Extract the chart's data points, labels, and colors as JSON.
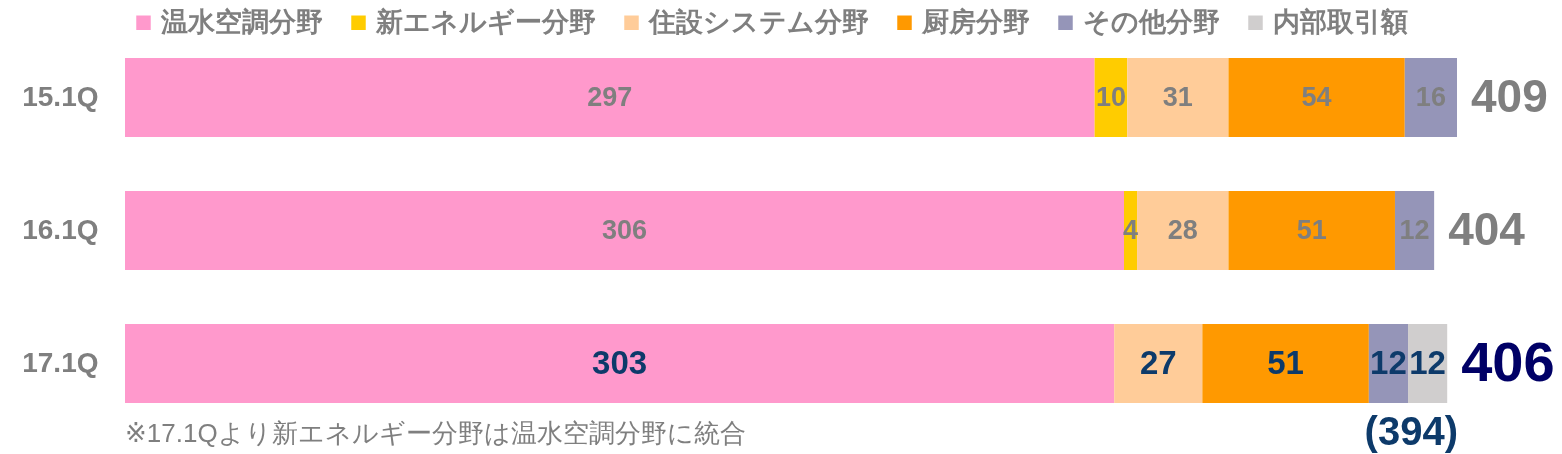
{
  "chart_data": {
    "type": "bar",
    "orientation": "horizontal",
    "stacked": true,
    "categories": [
      "15.1Q",
      "16.1Q",
      "17.1Q"
    ],
    "series": [
      {
        "name": "温水空調分野",
        "color": "#ff99cc",
        "values": [
          297,
          306,
          303
        ]
      },
      {
        "name": "新エネルギー分野",
        "color": "#ffcc00",
        "values": [
          10,
          4,
          null
        ]
      },
      {
        "name": "住設システム分野",
        "color": "#ffcc99",
        "values": [
          31,
          28,
          27
        ]
      },
      {
        "name": "厨房分野",
        "color": "#ff9900",
        "values": [
          54,
          51,
          51
        ]
      },
      {
        "name": "その他分野",
        "color": "#9595b8",
        "values": [
          16,
          12,
          12
        ]
      },
      {
        "name": "内部取引額",
        "color": "#d0cece",
        "values": [
          null,
          null,
          12
        ]
      }
    ],
    "data_labels": true,
    "totals": [
      "409",
      "404",
      "406"
    ],
    "legend": "top",
    "tick_labels": "y",
    "annotations": [
      "※17.1Qより新エネルギー分野は温水空調分野に統合",
      {
        "text": "(394)",
        "x": 394,
        "y": "17.1Q"
      }
    ]
  }
}
